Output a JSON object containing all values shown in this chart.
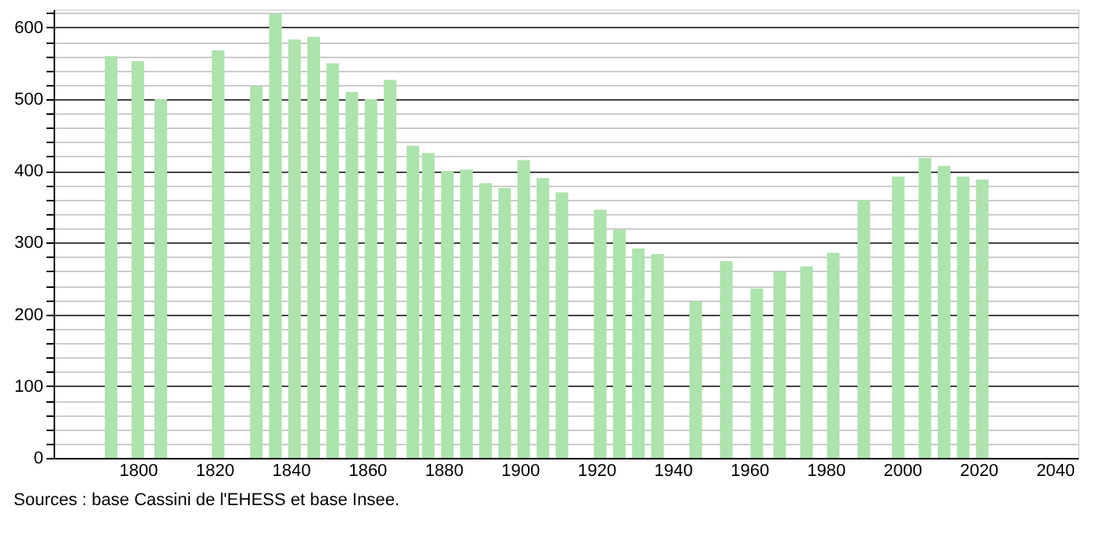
{
  "chart_data": {
    "type": "bar",
    "x": [
      1793,
      1800,
      1806,
      1821,
      1831,
      1836,
      1841,
      1846,
      1851,
      1856,
      1861,
      1866,
      1872,
      1876,
      1881,
      1886,
      1891,
      1896,
      1901,
      1906,
      1911,
      1921,
      1926,
      1931,
      1936,
      1946,
      1954,
      1962,
      1968,
      1975,
      1982,
      1990,
      1999,
      2006,
      2011,
      2016,
      2021
    ],
    "values": [
      560,
      553,
      500,
      568,
      518,
      619,
      583,
      587,
      550,
      510,
      500,
      527,
      435,
      425,
      400,
      402,
      383,
      376,
      415,
      390,
      370,
      346,
      318,
      292,
      284,
      218,
      274,
      236,
      260,
      267,
      286,
      359,
      392,
      418,
      407,
      392,
      388
    ],
    "color": "#ade3ad",
    "xlim": [
      1780,
      2044
    ],
    "xticks": [
      1800,
      1820,
      1840,
      1860,
      1880,
      1900,
      1920,
      1940,
      1960,
      1980,
      2000,
      2020,
      2040
    ],
    "ylim": [
      0,
      625
    ],
    "yticks": [
      0,
      {
        "value": 20,
        "label": null
      },
      {
        "value": 40,
        "label": null
      },
      {
        "value": 60,
        "label": null
      },
      {
        "value": 80,
        "label": null
      },
      100,
      {
        "value": 120,
        "label": null
      },
      {
        "value": 140,
        "label": null
      },
      {
        "value": 160,
        "label": null
      },
      {
        "value": 180,
        "label": null
      },
      200,
      {
        "value": 220,
        "label": null
      },
      {
        "value": 240,
        "label": null
      },
      {
        "value": 260,
        "label": null
      },
      {
        "value": 280,
        "label": null
      },
      300,
      {
        "value": 320,
        "label": null
      },
      {
        "value": 340,
        "label": null
      },
      {
        "value": 360,
        "label": null
      },
      {
        "value": 380,
        "label": null
      },
      400,
      {
        "value": 420,
        "label": null
      },
      {
        "value": 440,
        "label": null
      },
      {
        "value": 460,
        "label": null
      },
      {
        "value": 480,
        "label": null
      },
      500,
      {
        "value": 520,
        "label": null
      },
      {
        "value": 540,
        "label": null
      },
      {
        "value": 560,
        "label": null
      },
      {
        "value": 580,
        "label": null
      },
      600,
      {
        "value": 620,
        "label": null
      }
    ],
    "grid": "y",
    "annotations": [
      "Sources : base Cassini de l'EHESS et base Insee."
    ]
  }
}
